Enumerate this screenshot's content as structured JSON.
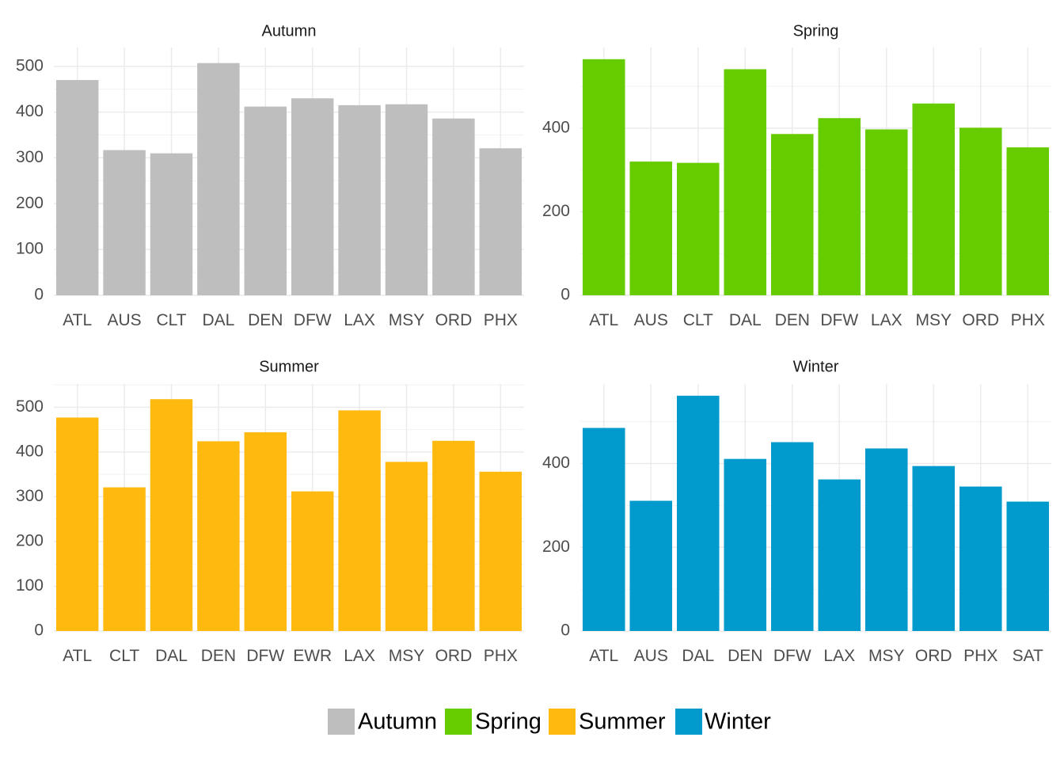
{
  "chart_data": [
    {
      "type": "bar",
      "title": "Autumn",
      "color": "#BEBEBE",
      "categories": [
        "ATL",
        "AUS",
        "CLT",
        "DAL",
        "DEN",
        "DFW",
        "LAX",
        "MSY",
        "ORD",
        "PHX"
      ],
      "values": [
        470,
        317,
        310,
        507,
        412,
        430,
        415,
        417,
        386,
        321
      ],
      "yticks": [
        0,
        100,
        200,
        300,
        400,
        500
      ],
      "ylim": [
        0,
        541
      ],
      "grid": true,
      "xlabel": "",
      "ylabel": ""
    },
    {
      "type": "bar",
      "title": "Spring",
      "color": "#66CC00",
      "categories": [
        "ATL",
        "AUS",
        "CLT",
        "DAL",
        "DEN",
        "DFW",
        "LAX",
        "MSY",
        "ORD",
        "PHX"
      ],
      "values": [
        565,
        320,
        317,
        541,
        386,
        424,
        397,
        459,
        401,
        354
      ],
      "yticks": [
        0,
        200,
        400
      ],
      "ylim": [
        0,
        593
      ],
      "grid": true,
      "xlabel": "",
      "ylabel": ""
    },
    {
      "type": "bar",
      "title": "Summer",
      "color": "#FFB90F",
      "categories": [
        "ATL",
        "CLT",
        "DAL",
        "DEN",
        "DFW",
        "EWR",
        "LAX",
        "MSY",
        "ORD",
        "PHX"
      ],
      "values": [
        477,
        321,
        518,
        424,
        444,
        312,
        493,
        378,
        425,
        356
      ],
      "yticks": [
        0,
        100,
        200,
        300,
        400,
        500
      ],
      "ylim": [
        0,
        552
      ],
      "grid": true,
      "xlabel": "",
      "ylabel": ""
    },
    {
      "type": "bar",
      "title": "Winter",
      "color": "#009ACD",
      "categories": [
        "ATL",
        "AUS",
        "DAL",
        "DEN",
        "DFW",
        "LAX",
        "MSY",
        "ORD",
        "PHX",
        "SAT"
      ],
      "values": [
        485,
        311,
        562,
        411,
        451,
        362,
        436,
        394,
        345,
        309
      ],
      "yticks": [
        0,
        200,
        400
      ],
      "ylim": [
        0,
        590
      ],
      "grid": true,
      "xlabel": "",
      "ylabel": ""
    }
  ],
  "legend": {
    "position": "bottom",
    "items": [
      {
        "label": "Autumn",
        "color": "#BEBEBE"
      },
      {
        "label": "Spring",
        "color": "#66CC00"
      },
      {
        "label": "Summer",
        "color": "#FFB90F"
      },
      {
        "label": "Winter",
        "color": "#009ACD"
      }
    ]
  }
}
